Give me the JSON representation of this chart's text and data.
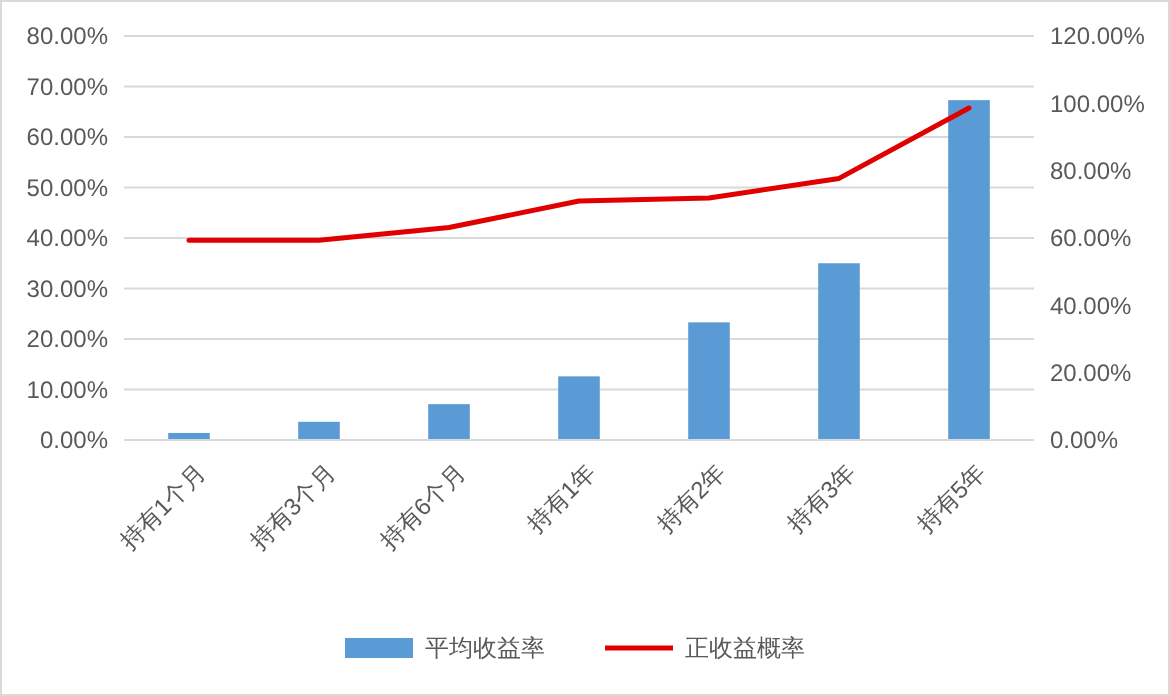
{
  "chart_data": {
    "type": "bar",
    "categories": [
      "持有1个月",
      "持有3个月",
      "持有6个月",
      "持有1年",
      "持有2年",
      "持有3年",
      "持有5年"
    ],
    "series": [
      {
        "name": "平均收益率",
        "color": "#5b9bd5",
        "values": [
          1.4,
          3.6,
          7.1,
          12.6,
          23.3,
          35.0,
          67.3
        ]
      },
      {
        "name": "正收益概率",
        "color": "#e00000",
        "type": "line",
        "axis": "y2",
        "values": [
          59.3,
          59.3,
          63.1,
          71.0,
          71.9,
          77.7,
          98.6
        ]
      }
    ],
    "ylim": [
      0,
      80
    ],
    "yticks": [
      {
        "value": 0,
        "label": "0.00%"
      },
      {
        "value": 10,
        "label": "10.00%"
      },
      {
        "value": 20,
        "label": "20.00%"
      },
      {
        "value": 30,
        "label": "30.00%"
      },
      {
        "value": 40,
        "label": "40.00%"
      },
      {
        "value": 50,
        "label": "50.00%"
      },
      {
        "value": 60,
        "label": "60.00%"
      },
      {
        "value": 70,
        "label": "70.00%"
      },
      {
        "value": 80,
        "label": "80.00%"
      }
    ],
    "y2lim": [
      0,
      120
    ],
    "y2ticks": [
      {
        "value": 0,
        "label": "0.00%"
      },
      {
        "value": 20,
        "label": "20.00%"
      },
      {
        "value": 40,
        "label": "40.00%"
      },
      {
        "value": 60,
        "label": "60.00%"
      },
      {
        "value": 80,
        "label": "80.00%"
      },
      {
        "value": 100,
        "label": "100.00%"
      },
      {
        "value": 120,
        "label": "120.00%"
      }
    ],
    "grid": "y",
    "legend": "bottom",
    "marker": "none",
    "line_style": "solid"
  }
}
